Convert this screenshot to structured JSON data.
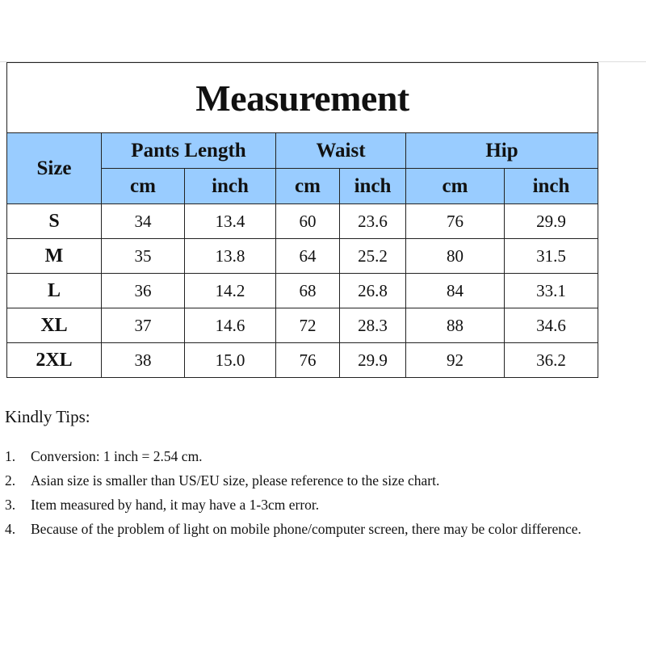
{
  "title": "Measurement",
  "headers": {
    "size": "Size",
    "groups": [
      "Pants Length",
      "Waist",
      "Hip"
    ],
    "units": [
      "cm",
      "inch",
      "cm",
      "inch",
      "cm",
      "inch"
    ]
  },
  "header_color": "#99ccff",
  "rows": [
    {
      "size": "S",
      "values": [
        "34",
        "13.4",
        "60",
        "23.6",
        "76",
        "29.9"
      ]
    },
    {
      "size": "M",
      "values": [
        "35",
        "13.8",
        "64",
        "25.2",
        "80",
        "31.5"
      ]
    },
    {
      "size": "L",
      "values": [
        "36",
        "14.2",
        "68",
        "26.8",
        "84",
        "33.1"
      ]
    },
    {
      "size": "XL",
      "values": [
        "37",
        "14.6",
        "72",
        "28.3",
        "88",
        "34.6"
      ]
    },
    {
      "size": "2XL",
      "values": [
        "38",
        "15.0",
        "76",
        "29.9",
        "92",
        "36.2"
      ]
    }
  ],
  "tips": {
    "heading": "Kindly Tips:",
    "items": [
      {
        "num": "1.",
        "text": "Conversion: 1 inch = 2.54 cm."
      },
      {
        "num": "2.",
        "text": "Asian size is smaller than US/EU size, please reference to the size chart."
      },
      {
        "num": "3.",
        "text": "Item measured by hand, it may have a 1-3cm error."
      },
      {
        "num": "4.",
        "text": "Because of the problem of light on mobile phone/computer screen, there may be color difference."
      }
    ]
  }
}
